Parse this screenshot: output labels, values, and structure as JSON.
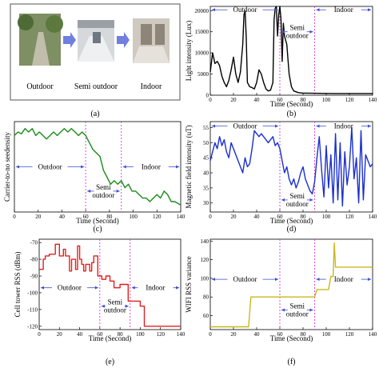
{
  "photo_panel": {
    "photos": [
      {
        "label": "Outdoor",
        "tone": "#7d8f63"
      },
      {
        "label": "Semi outdoor",
        "tone": "#d6d9dc"
      },
      {
        "label": "Indoor",
        "tone": "#cfc9c0"
      }
    ],
    "arrow_color": "#6f7fe0",
    "caption": "(a)"
  },
  "zone_colors": {
    "divider": "#d63bd6",
    "arrow": "#3c4fd0"
  },
  "chart_data": [
    {
      "id": "b",
      "type": "line",
      "caption": "(b)",
      "xlabel": "Time (Second)",
      "ylabel": "Light intensity (Lux)",
      "xlim": [
        0,
        140
      ],
      "ylim": [
        0,
        21000
      ],
      "xticks": [
        0,
        20,
        40,
        60,
        80,
        100,
        120,
        140
      ],
      "yticks": [
        0,
        5000,
        10000,
        15000,
        20000
      ],
      "color": "#000000",
      "dividers": [
        60,
        90
      ],
      "zones": [
        {
          "label": "Outdoor",
          "from": 0,
          "to": 60,
          "y": 20200
        },
        {
          "label": "Semi\noutdoor",
          "from": 60,
          "to": 90,
          "y": 15000
        },
        {
          "label": "Indoor",
          "from": 90,
          "to": 140,
          "y": 20200
        }
      ],
      "series": [
        {
          "x": [
            0,
            2,
            4,
            6,
            8,
            10,
            12,
            14,
            16,
            18,
            20,
            22,
            24,
            26,
            28,
            29,
            30,
            31,
            32,
            34,
            36,
            38,
            40,
            42,
            44,
            46,
            48,
            50,
            52,
            54,
            55,
            56,
            57,
            58,
            59,
            60,
            61,
            62,
            63,
            64,
            66,
            68,
            70,
            72,
            76,
            80,
            90,
            100,
            110,
            120,
            130,
            140
          ],
          "y": [
            5500,
            10000,
            7500,
            8000,
            7000,
            4500,
            3000,
            2000,
            3500,
            6000,
            9000,
            5000,
            3000,
            5500,
            12000,
            19000,
            20000,
            14000,
            3000,
            2000,
            1800,
            1500,
            3000,
            6000,
            5000,
            3000,
            1500,
            1000,
            1200,
            3000,
            18000,
            20500,
            21000,
            14000,
            19000,
            21000,
            18000,
            8000,
            17000,
            14000,
            12000,
            5000,
            2000,
            1000,
            600,
            500,
            450,
            420,
            400,
            400,
            400,
            400
          ]
        }
      ]
    },
    {
      "id": "c",
      "type": "line",
      "caption": "(c)",
      "xlabel": "Time (Second)",
      "ylabel": "Carrier-to-no seedensity",
      "xlim": [
        0,
        140
      ],
      "ylim": [
        0,
        26
      ],
      "xticks": [
        0,
        20,
        40,
        60,
        80,
        100,
        120,
        140
      ],
      "yticks": [],
      "color": "#1a8a1a",
      "dividers": [
        60,
        90
      ],
      "zones": [
        {
          "label": "Outdoor",
          "from": 0,
          "to": 60,
          "y": 13
        },
        {
          "label": "Indoor",
          "from": 90,
          "to": 140,
          "y": 13
        },
        {
          "label": "Semi\noutdoor",
          "from": 60,
          "to": 90,
          "y": 6
        }
      ],
      "series": [
        {
          "x": [
            0,
            3,
            6,
            9,
            12,
            15,
            18,
            21,
            24,
            27,
            30,
            33,
            36,
            39,
            42,
            45,
            48,
            51,
            54,
            57,
            60,
            63,
            66,
            69,
            72,
            75,
            78,
            81,
            84,
            87,
            90,
            93,
            96,
            99,
            102,
            105,
            108,
            111,
            114,
            117,
            120,
            123,
            126,
            129,
            132,
            135,
            140
          ],
          "y": [
            22,
            23,
            22.5,
            24,
            23,
            24,
            22,
            23,
            22,
            21,
            22,
            23,
            22,
            23,
            24,
            23,
            24,
            23,
            22,
            23,
            22,
            20,
            18,
            17,
            16,
            12,
            10,
            8,
            9,
            8,
            9,
            7,
            8,
            6,
            6,
            5,
            4,
            4,
            3,
            4,
            5,
            4,
            6,
            5,
            3,
            3,
            2
          ]
        }
      ]
    },
    {
      "id": "d",
      "type": "line",
      "caption": "(d)",
      "xlabel": "Time (Second)",
      "ylabel": "Magnetic field intensity (uT)",
      "xlim": [
        0,
        140
      ],
      "ylim": [
        27,
        57
      ],
      "xticks": [
        0,
        20,
        40,
        60,
        80,
        100,
        120,
        140
      ],
      "yticks": [
        30,
        35,
        40,
        45,
        50,
        55
      ],
      "color": "#1a2fd0",
      "dividers": [
        60,
        90
      ],
      "zones": [
        {
          "label": "Outdoor",
          "from": 0,
          "to": 60,
          "y": 55.5
        },
        {
          "label": "Indoor",
          "from": 90,
          "to": 140,
          "y": 55.5
        },
        {
          "label": "Semi\noutdoor",
          "from": 60,
          "to": 90,
          "y": 31
        }
      ],
      "series": [
        {
          "x": [
            0,
            2,
            4,
            6,
            8,
            10,
            12,
            14,
            16,
            18,
            20,
            22,
            24,
            26,
            28,
            30,
            32,
            34,
            36,
            38,
            40,
            42,
            44,
            46,
            48,
            50,
            52,
            54,
            56,
            58,
            60,
            62,
            64,
            66,
            68,
            70,
            72,
            74,
            76,
            78,
            80,
            82,
            84,
            86,
            88,
            90,
            92,
            94,
            96,
            98,
            100,
            102,
            104,
            106,
            108,
            110,
            112,
            114,
            116,
            118,
            120,
            122,
            124,
            126,
            128,
            130,
            132,
            134,
            136,
            138,
            140
          ],
          "y": [
            44,
            47,
            50,
            48,
            52,
            49,
            51,
            47,
            45,
            50,
            48,
            46,
            44,
            42,
            40,
            45,
            42,
            43,
            48,
            54,
            53,
            52,
            53,
            52,
            51,
            50,
            51,
            52,
            49,
            50,
            48,
            44,
            40,
            42,
            38,
            36,
            38,
            35,
            37,
            40,
            42,
            38,
            36,
            34,
            33,
            37,
            45,
            52,
            41,
            32,
            49,
            35,
            46,
            30,
            53,
            31,
            50,
            29,
            47,
            36,
            42,
            55,
            38,
            45,
            30,
            54,
            31,
            46,
            44,
            42,
            43
          ]
        }
      ]
    },
    {
      "id": "e",
      "type": "line",
      "caption": "(e)",
      "xlabel": "Time (Second)",
      "ylabel": "Cell tower RSS (dBm)",
      "xlim": [
        0,
        140
      ],
      "ylim": [
        -122,
        -68
      ],
      "xticks": [
        0,
        20,
        40,
        60,
        80,
        100,
        120,
        140
      ],
      "yticks": [
        -70,
        -80,
        -90,
        -100,
        -110,
        -120
      ],
      "color": "#e02020",
      "dividers": [
        60,
        90
      ],
      "zones": [
        {
          "label": "Outdoor",
          "from": 0,
          "to": 60,
          "y": -97
        },
        {
          "label": "Indoor",
          "from": 90,
          "to": 140,
          "y": -97
        },
        {
          "label": "Semi\noutdoor",
          "from": 60,
          "to": 90,
          "y": -108
        }
      ],
      "series": [
        {
          "x": [
            0,
            4,
            4,
            6,
            6,
            10,
            10,
            16,
            16,
            20,
            20,
            24,
            24,
            26,
            26,
            30,
            30,
            32,
            32,
            36,
            36,
            38,
            38,
            40,
            40,
            42,
            42,
            44,
            44,
            46,
            46,
            50,
            50,
            52,
            52,
            54,
            54,
            58,
            58,
            62,
            62,
            66,
            66,
            70,
            70,
            74,
            74,
            80,
            80,
            88,
            88,
            100,
            100,
            104,
            104,
            140
          ],
          "y": [
            -86,
            -86,
            -80,
            -80,
            -78,
            -78,
            -77,
            -77,
            -71,
            -71,
            -78,
            -78,
            -74,
            -74,
            -78,
            -78,
            -87,
            -87,
            -80,
            -80,
            -86,
            -86,
            -72,
            -72,
            -80,
            -80,
            -83,
            -83,
            -87,
            -87,
            -83,
            -83,
            -87,
            -87,
            -82,
            -82,
            -78,
            -78,
            -90,
            -90,
            -92,
            -92,
            -90,
            -90,
            -93,
            -93,
            -97,
            -97,
            -95,
            -95,
            -105,
            -105,
            -108,
            -108,
            -120,
            -120
          ]
        }
      ]
    },
    {
      "id": "f",
      "type": "line",
      "caption": "(f)",
      "xlabel": "Time (Second)",
      "ylabel": "WIFI RSS variance",
      "xlim": [
        0,
        140
      ],
      "ylim": [
        45,
        142
      ],
      "xticks": [
        0,
        20,
        40,
        60,
        80,
        100,
        120,
        140
      ],
      "yticks": [
        60,
        80,
        100,
        120,
        140
      ],
      "color": "#c8b820",
      "dividers": [
        60,
        90
      ],
      "zones": [
        {
          "label": "Outdoor",
          "from": 0,
          "to": 60,
          "y": 99
        },
        {
          "label": "Indoor",
          "from": 90,
          "to": 140,
          "y": 99
        },
        {
          "label": "Semi\noutdoor",
          "from": 60,
          "to": 90,
          "y": 66
        }
      ],
      "series": [
        {
          "x": [
            0,
            2,
            33,
            35,
            60,
            89,
            90,
            92,
            102,
            104,
            106,
            107,
            108,
            140
          ],
          "y": [
            48,
            48,
            48,
            80,
            80,
            80,
            80,
            88,
            88,
            102,
            102,
            138,
            112,
            112
          ]
        }
      ]
    }
  ]
}
